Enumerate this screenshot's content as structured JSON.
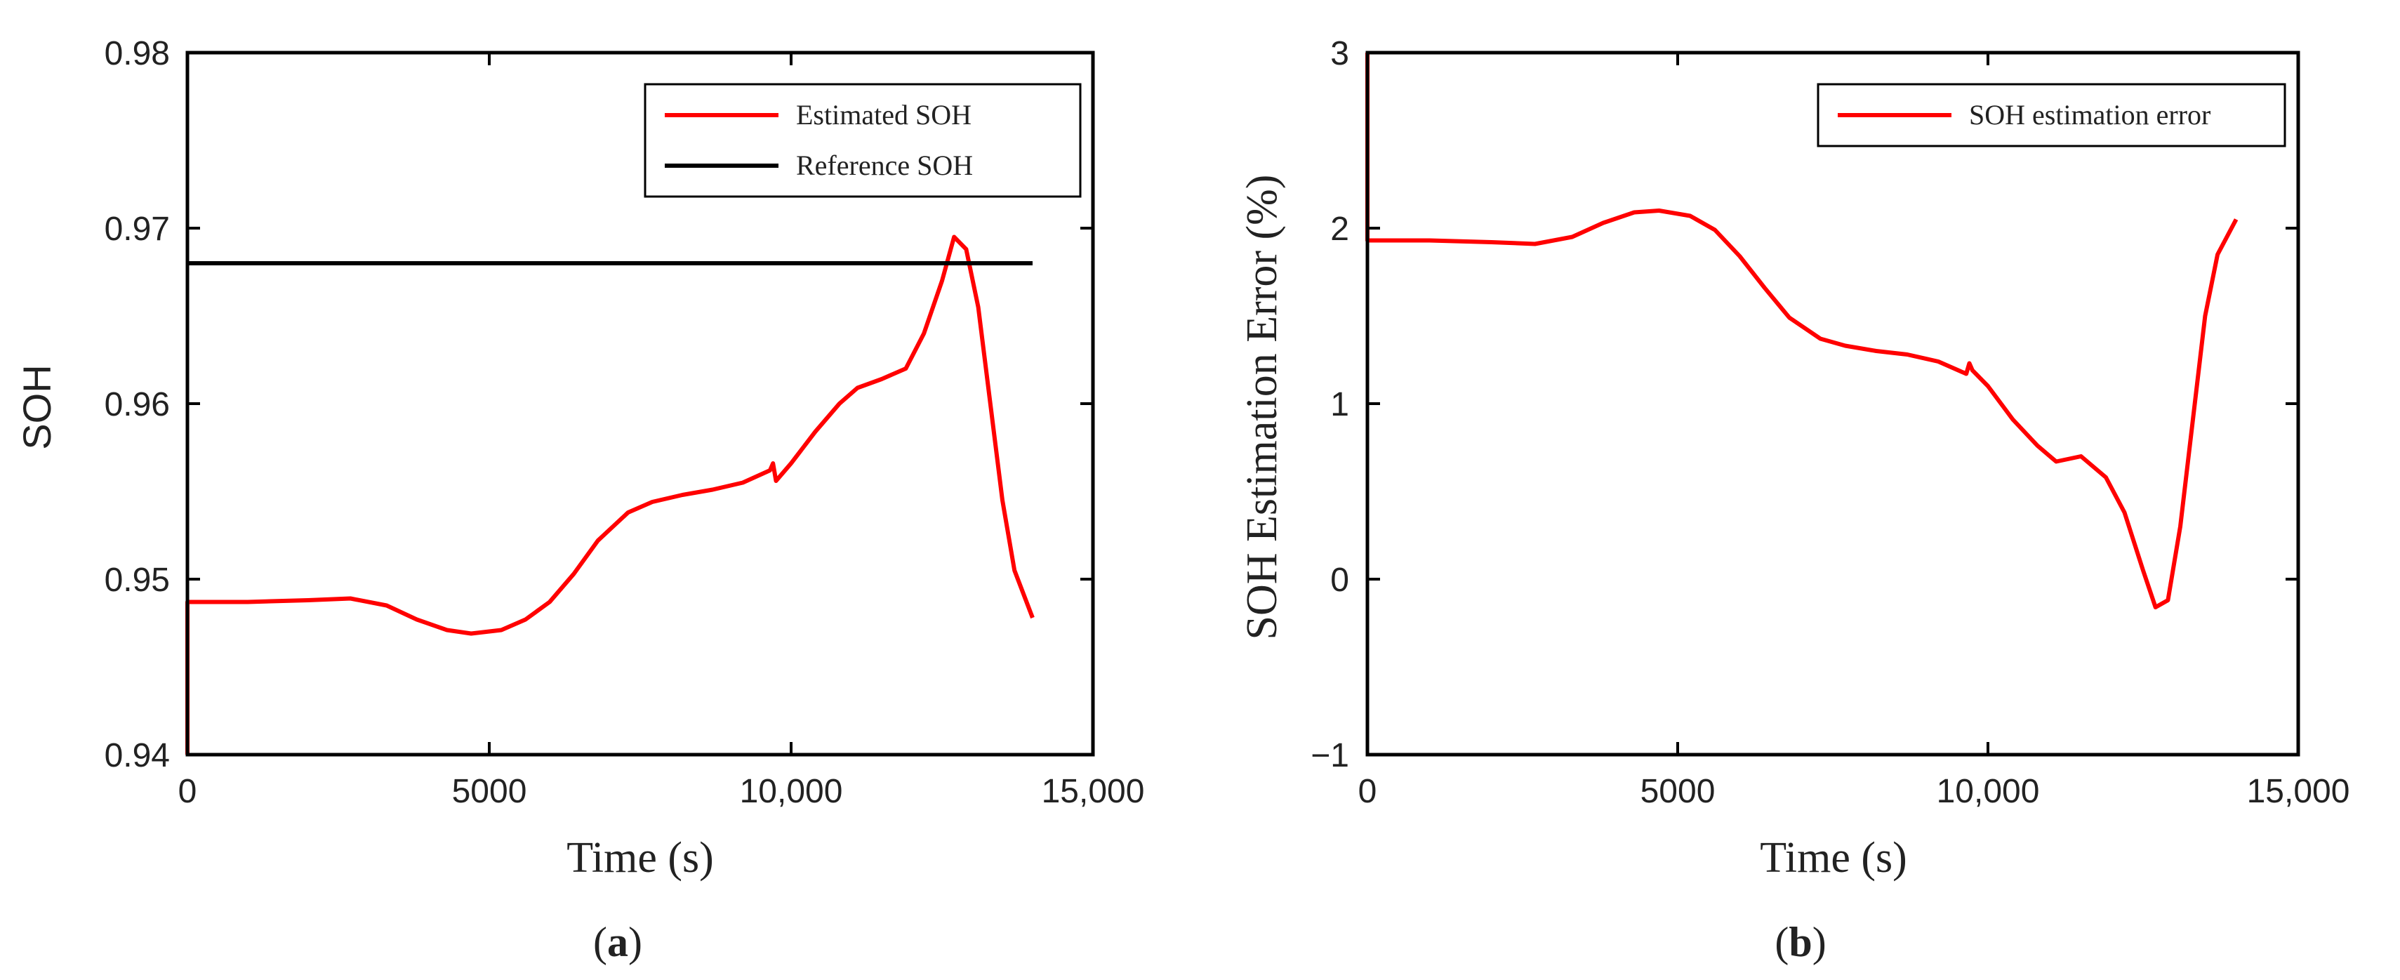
{
  "chart_data": [
    {
      "type": "line",
      "panel": "a",
      "caption": {
        "open": "(",
        "letter": "a",
        "close": ")"
      },
      "xlabel": "Time  (s)",
      "ylabel": "SOH",
      "xlim": [
        0,
        15000
      ],
      "ylim": [
        0.94,
        0.98
      ],
      "xticks": [
        0,
        5000,
        10000,
        15000
      ],
      "xtick_labels": [
        "0",
        "5000",
        "10,000",
        "15,000"
      ],
      "yticks": [
        0.94,
        0.95,
        0.96,
        0.97,
        0.98
      ],
      "ytick_labels": [
        "0.94",
        "0.95",
        "0.96",
        "0.97",
        "0.98"
      ],
      "grid": false,
      "legend_position": "top-right",
      "series": [
        {
          "name": "Estimated SOH",
          "color": "#ff0000",
          "x": [
            0,
            0,
            200,
            1000,
            2000,
            2700,
            3300,
            3800,
            4300,
            4700,
            5200,
            5600,
            6000,
            6400,
            6800,
            7300,
            7700,
            8200,
            8700,
            9200,
            9650,
            9700,
            9750,
            10000,
            10400,
            10800,
            11100,
            11500,
            11900,
            12200,
            12500,
            12700,
            12900,
            13100,
            13300,
            13500,
            13700,
            14000
          ],
          "y": [
            0.94,
            0.9487,
            0.9487,
            0.9487,
            0.9488,
            0.9489,
            0.9485,
            0.9477,
            0.9471,
            0.9469,
            0.9471,
            0.9477,
            0.9487,
            0.9503,
            0.9522,
            0.9538,
            0.9544,
            0.9548,
            0.9551,
            0.9555,
            0.9562,
            0.9566,
            0.9556,
            0.9566,
            0.9584,
            0.96,
            0.9609,
            0.9614,
            0.962,
            0.964,
            0.967,
            0.9695,
            0.9688,
            0.9655,
            0.96,
            0.9545,
            0.9505,
            0.9478
          ]
        },
        {
          "name": "Reference SOH",
          "color": "#000000",
          "x": [
            0,
            14000
          ],
          "y": [
            0.968,
            0.968
          ]
        }
      ]
    },
    {
      "type": "line",
      "panel": "b",
      "caption": {
        "open": "(",
        "letter": "b",
        "close": ")"
      },
      "xlabel": "Time  (s)",
      "ylabel": "SOH Estimation Error  (%)",
      "xlim": [
        0,
        15000
      ],
      "ylim": [
        -1,
        3
      ],
      "xticks": [
        0,
        5000,
        10000,
        15000
      ],
      "xtick_labels": [
        "0",
        "5000",
        "10,000",
        "15,000"
      ],
      "yticks": [
        -1,
        0,
        1,
        2,
        3
      ],
      "ytick_labels": [
        "−1",
        "0",
        "1",
        "2",
        "3"
      ],
      "grid": false,
      "legend_position": "top-right",
      "series": [
        {
          "name": "SOH estimation error",
          "color": "#ff0000",
          "x": [
            0,
            0,
            200,
            1000,
            2000,
            2700,
            3300,
            3800,
            4300,
            4700,
            5200,
            5600,
            6000,
            6400,
            6800,
            7300,
            7700,
            8200,
            8700,
            9200,
            9650,
            9700,
            9750,
            10000,
            10400,
            10800,
            11100,
            11500,
            11900,
            12200,
            12500,
            12700,
            12900,
            13100,
            13300,
            13500,
            13700,
            14000
          ],
          "y": [
            3.0,
            1.93,
            1.93,
            1.93,
            1.92,
            1.91,
            1.95,
            2.03,
            2.09,
            2.1,
            2.07,
            1.99,
            1.84,
            1.66,
            1.49,
            1.37,
            1.33,
            1.3,
            1.28,
            1.24,
            1.17,
            1.23,
            1.19,
            1.1,
            0.91,
            0.76,
            0.67,
            0.7,
            0.58,
            0.38,
            0.05,
            -0.16,
            -0.12,
            0.3,
            0.9,
            1.5,
            1.85,
            2.05
          ]
        }
      ]
    }
  ]
}
